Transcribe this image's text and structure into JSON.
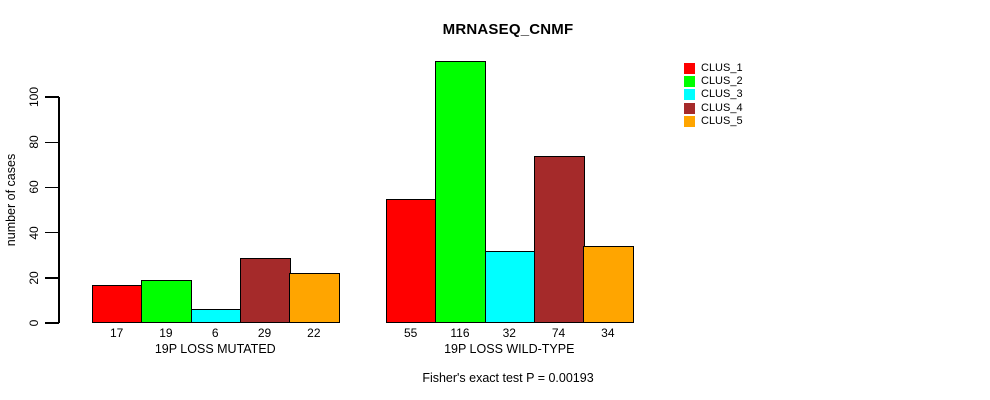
{
  "chart_data": {
    "type": "bar",
    "title": "MRNASEQ_CNMF",
    "ylabel": "number of cases",
    "subtitle": "Fisher's exact test P = 0.00193",
    "ylim": [
      0,
      116
    ],
    "yticks": [
      0,
      20,
      40,
      60,
      80,
      100
    ],
    "grid": false,
    "legend_position": "top-right",
    "series": [
      {
        "name": "CLUS_1",
        "color": "#FF0000"
      },
      {
        "name": "CLUS_2",
        "color": "#00FF00"
      },
      {
        "name": "CLUS_3",
        "color": "#00FFFF"
      },
      {
        "name": "CLUS_4",
        "color": "#A52A2A"
      },
      {
        "name": "CLUS_5",
        "color": "#FFA500"
      }
    ],
    "groups": [
      {
        "label": "19P LOSS MUTATED",
        "values": [
          17,
          19,
          6,
          29,
          22
        ]
      },
      {
        "label": "19P LOSS WILD-TYPE",
        "values": [
          55,
          116,
          32,
          74,
          34
        ]
      }
    ]
  }
}
